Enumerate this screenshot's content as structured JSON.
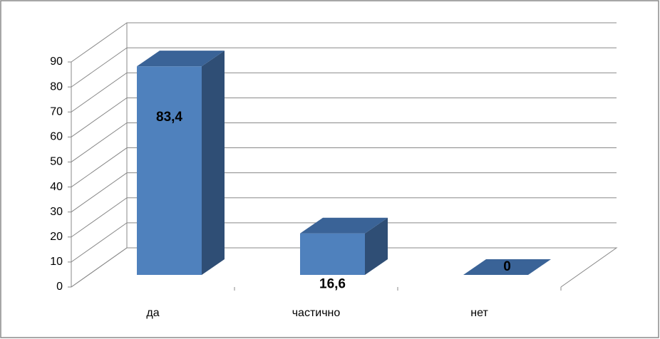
{
  "chart_data": {
    "type": "bar3d",
    "categories": [
      "да",
      "частично",
      "нет"
    ],
    "values": [
      83.4,
      16.6,
      0
    ],
    "value_labels": [
      "83,4",
      "16,6",
      "0"
    ],
    "color": "#4f81bd",
    "ylim": [
      0,
      90
    ],
    "yticks": [
      0,
      10,
      20,
      30,
      40,
      50,
      60,
      70,
      80,
      90
    ],
    "grid": true
  }
}
